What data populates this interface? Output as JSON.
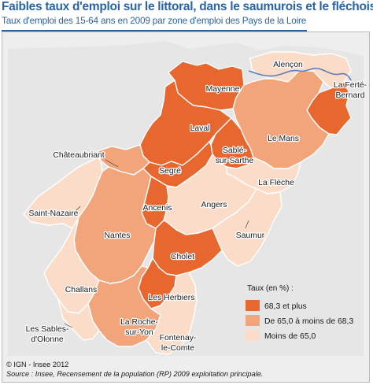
{
  "title": "Faibles taux d'emploi sur le littoral, dans le saumurois et le fléchois",
  "subtitle": "Taux d'emploi des 15-64 ans en 2009 par zone d'emploi des Pays de la Loire",
  "colors": {
    "high": "#e8672f",
    "mid": "#f2a47b",
    "low": "#fbdcc8",
    "outside": "#e6e6e6",
    "river": "#5b7fb7",
    "title": "#2a64a8"
  },
  "zones": {
    "alencon": {
      "label": "Alençon",
      "class": "low"
    },
    "ferte_bernard": {
      "label_l1": "La Ferté-",
      "label_l2": "Bernard",
      "class": "high"
    },
    "mayenne": {
      "label": "Mayenne",
      "class": "high"
    },
    "laval": {
      "label": "Laval",
      "class": "high"
    },
    "le_mans": {
      "label": "Le Mans",
      "class": "mid"
    },
    "sable": {
      "label_l1": "Sablé-",
      "label_l2": "sur-Sarthe",
      "class": "high"
    },
    "chateaubriant": {
      "label": "Châteaubriant",
      "class": "mid"
    },
    "segre": {
      "label": "Segré",
      "class": "high"
    },
    "la_fleche": {
      "label": "La Flèche",
      "class": "low"
    },
    "saint_nazaire": {
      "label": "Saint-Nazaire",
      "class": "low"
    },
    "ancenis": {
      "label": "Ancenis",
      "class": "high"
    },
    "angers": {
      "label": "Angers",
      "class": "low"
    },
    "nantes": {
      "label": "Nantes",
      "class": "mid"
    },
    "saumur": {
      "label": "Saumur",
      "class": "low"
    },
    "cholet": {
      "label": "Cholet",
      "class": "high"
    },
    "challans": {
      "label": "Challans",
      "class": "low"
    },
    "les_herbiers": {
      "label": "Les Herbiers",
      "class": "high"
    },
    "la_roche": {
      "label_l1": "La Roche-",
      "label_l2": "sur-Yon",
      "class": "mid"
    },
    "sables": {
      "label_l1": "Les Sables-",
      "label_l2": "d'Olonne",
      "class": "low"
    },
    "fontenay": {
      "label_l1": "Fontenay-",
      "label_l2": "le-Comte",
      "class": "low"
    }
  },
  "legend": {
    "title": "Taux (en %) :",
    "items": [
      {
        "label": "68,3 et plus",
        "color": "#e8672f"
      },
      {
        "label": "De 65,0 à moins de 68,3",
        "color": "#f2a47b"
      },
      {
        "label": "Moins de 65,0",
        "color": "#fbdcc8"
      }
    ]
  },
  "footer": {
    "copyright": "© IGN - Insee 2012",
    "source": "Source : Insee, Recensement de la population (RP) 2009 exploitation principale."
  }
}
